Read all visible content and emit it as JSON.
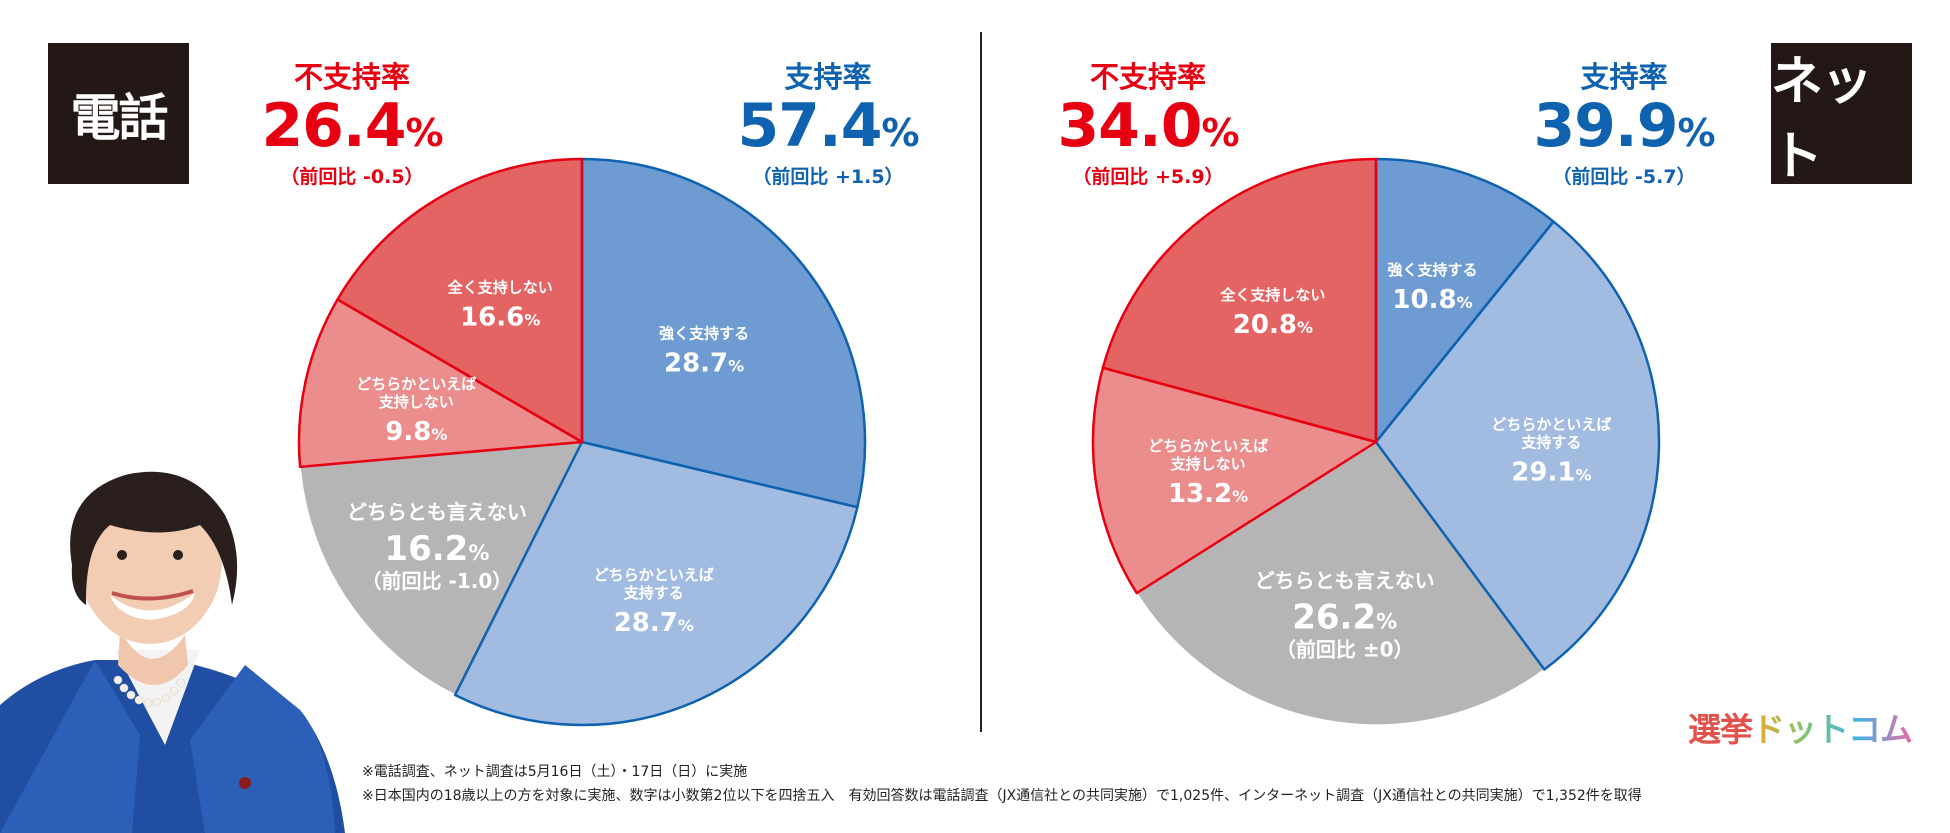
{
  "phone": {
    "badge": "電話",
    "disapproval": {
      "label": "不支持率",
      "value": "26.4",
      "unit": "%",
      "prev": "（前回比 -0.5）"
    },
    "approval": {
      "label": "支持率",
      "value": "57.4",
      "unit": "%",
      "prev": "（前回比 +1.5）"
    }
  },
  "net": {
    "badge": "ネット",
    "disapproval": {
      "label": "不支持率",
      "value": "34.0",
      "unit": "%",
      "prev": "（前回比 +5.9）"
    },
    "approval": {
      "label": "支持率",
      "value": "39.9",
      "unit": "%",
      "prev": "（前回比 -5.7）"
    }
  },
  "chart_data": [
    {
      "type": "pie",
      "start_angle": "12 o'clock, clockwise",
      "slices": [
        {
          "label": "強く支持する",
          "value": 28.7,
          "color": "#6d9bd2"
        },
        {
          "label": "どちらかといえば\n支持する",
          "value": 28.7,
          "color": "#a2bbe0"
        },
        {
          "label": "どちらとも言えない",
          "value": 16.2,
          "color": "#b5b5b6",
          "sub": "（前回比 -1.0）"
        },
        {
          "label": "どちらかといえば\n支持しない",
          "value": 9.8,
          "color": "#ea8d8c"
        },
        {
          "label": "全く支持しない",
          "value": 16.6,
          "color": "#e36463"
        }
      ]
    },
    {
      "type": "pie",
      "start_angle": "12 o'clock, clockwise",
      "slices": [
        {
          "label": "強く支持する",
          "value": 10.8,
          "color": "#6d9bd2"
        },
        {
          "label": "どちらかといえば\n支持する",
          "value": 29.1,
          "color": "#a2bbe0"
        },
        {
          "label": "どちらとも言えない",
          "value": 26.2,
          "color": "#b5b5b6",
          "sub": "（前回比 ±0）"
        },
        {
          "label": "どちらかといえば\n支持しない",
          "value": 13.2,
          "color": "#ea8d8c"
        },
        {
          "label": "全く支持しない",
          "value": 20.8,
          "color": "#e36463"
        }
      ]
    }
  ],
  "colors": {
    "blue_border": "#0e62b0",
    "red_border": "#e60012",
    "gray_border": "#ffffff"
  },
  "notes": [
    "※電話調査、ネット調査は5月16日（土）・17日（日）に実施",
    "※日本国内の18歳以上の方を対象に実施、数字は小数第2位以下を四捨五入　有効回答数は電話調査（JX通信社との共同実施）で1,025件、インターネット調査（JX通信社との共同実施）で1,352件を取得"
  ],
  "logo": {
    "text1": "選挙",
    "text2": "ドットコム"
  }
}
